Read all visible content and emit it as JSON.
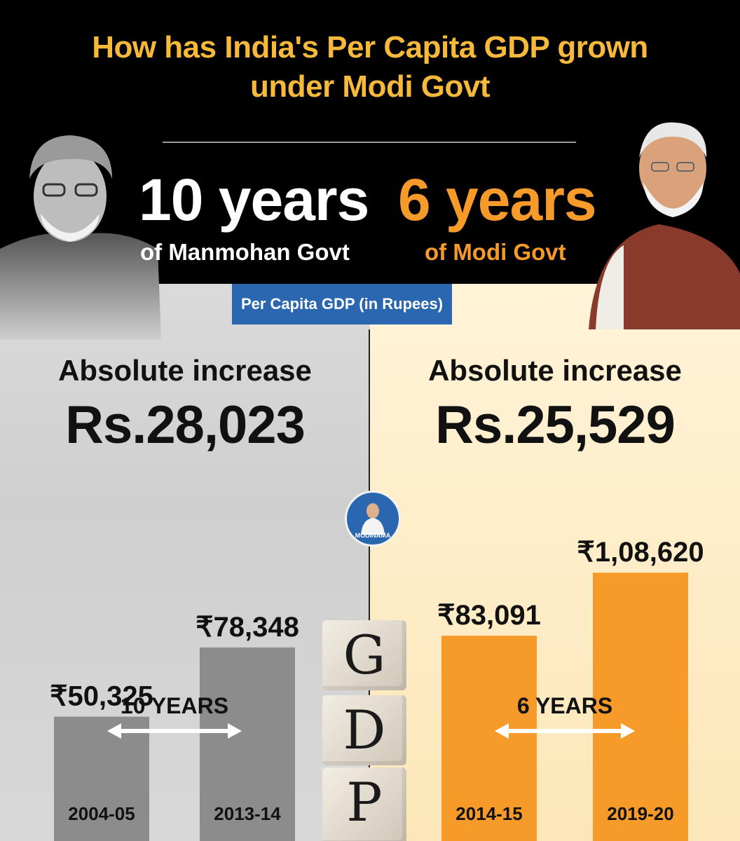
{
  "title": {
    "line1": "How has India's Per Capita GDP grown",
    "line2": "under Modi Govt"
  },
  "left_period": {
    "years": "10 years",
    "govt": "of Manmohan Govt"
  },
  "right_period": {
    "years": "6 years",
    "govt": "of Modi Govt"
  },
  "badge": "Per Capita GDP (in Rupees)",
  "left_increase": {
    "label": "Absolute increase",
    "value": "Rs.28,023"
  },
  "right_increase": {
    "label": "Absolute increase",
    "value": "Rs.25,529"
  },
  "logo_text": "MODINAMA",
  "gdp_letters": [
    "G",
    "D",
    "P"
  ],
  "colors": {
    "title": "#f7b93a",
    "modi_orange": "#f69a2a",
    "manmohan_grey": "#8c8c8c",
    "badge_blue": "#2b66b1"
  },
  "chart_data": {
    "type": "bar",
    "title": "Per Capita GDP (in Rupees)",
    "categories": [
      "2004-05",
      "2013-14",
      "2014-15",
      "2019-20"
    ],
    "values": [
      50325,
      78348,
      83091,
      108620
    ],
    "value_labels": [
      "₹50,325",
      "₹78,348",
      "₹83,091",
      "₹1,08,620"
    ],
    "groups": [
      {
        "name": "of Manmohan Govt",
        "span_label": "10 YEARS",
        "categories": [
          "2004-05",
          "2013-14"
        ],
        "color": "#8c8c8c"
      },
      {
        "name": "of Modi Govt",
        "span_label": "6 YEARS",
        "categories": [
          "2014-15",
          "2019-20"
        ],
        "color": "#f69a2a"
      }
    ],
    "ylim": [
      0,
      120000
    ]
  }
}
